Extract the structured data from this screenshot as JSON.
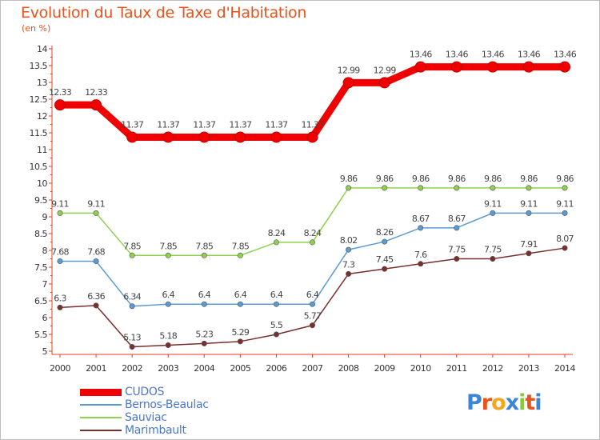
{
  "title": "Evolution du Taux de Taxe d'Habitation",
  "unit": "(en %)",
  "logo": {
    "text": "Proxiti",
    "letters": [
      "P",
      "r",
      "o",
      "x",
      "i",
      "t",
      "i"
    ],
    "colors": [
      "#3a85d8",
      "#e8531c",
      "#f2a81d",
      "#3a85d8",
      "#8cc63e",
      "#e8531c",
      "#3a85d8"
    ]
  },
  "chart_data": {
    "type": "line",
    "title": "Evolution du Taux de Taxe d'Habitation",
    "ylabel": "(en %)",
    "x": [
      "2000",
      "2001",
      "2002",
      "2003",
      "2004",
      "2005",
      "2006",
      "2007",
      "2008",
      "2009",
      "2010",
      "2011",
      "2012",
      "2013",
      "2014"
    ],
    "ylim": [
      5,
      14
    ],
    "yticks": [
      "5",
      "5.5",
      "6",
      "6.5",
      "7",
      "7.5",
      "8",
      "8.5",
      "9",
      "9.5",
      "10",
      "10.5",
      "11",
      "11.5",
      "12",
      "12.5",
      "13",
      "13.5",
      "14"
    ],
    "grid": false,
    "legend_position": "bottom-left",
    "series": [
      {
        "name": "CUDOS",
        "color": "#f00000",
        "values": [
          12.33,
          12.33,
          11.37,
          11.37,
          11.37,
          11.37,
          11.37,
          11.37,
          12.99,
          12.99,
          13.46,
          13.46,
          13.46,
          13.46,
          13.46
        ],
        "labels": [
          "12.33",
          "12.33",
          "11.37",
          "11.37",
          "11.37",
          "11.37",
          "11.37",
          "11.37",
          "12.99",
          "12.99",
          "13.46",
          "13.46",
          "13.46",
          "13.46",
          "13.46"
        ]
      },
      {
        "name": "Bernos-Beaulac",
        "color": "#5b9bd5",
        "values": [
          7.68,
          7.68,
          6.34,
          6.4,
          6.4,
          6.4,
          6.4,
          6.4,
          8.02,
          8.26,
          8.67,
          8.67,
          9.11,
          9.11,
          9.11
        ],
        "labels": [
          "7.68",
          "7.68",
          "6.34",
          "6.4",
          "6.4",
          "6.4",
          "6.4",
          "6.4",
          "8.02",
          "8.26",
          "8.67",
          "8.67",
          "9.11",
          "9.11",
          "9.11"
        ]
      },
      {
        "name": "Sauviac",
        "color": "#8fd14f",
        "values": [
          9.11,
          9.11,
          7.85,
          7.85,
          7.85,
          7.85,
          8.24,
          8.24,
          9.86,
          9.86,
          9.86,
          9.86,
          9.86,
          9.86,
          9.86
        ],
        "labels": [
          "9.11",
          "9.11",
          "7.85",
          "7.85",
          "7.85",
          "7.85",
          "8.24",
          "8.24",
          "9.86",
          "9.86",
          "9.86",
          "9.86",
          "9.86",
          "9.86",
          "9.86"
        ]
      },
      {
        "name": "Marimbault",
        "color": "#7a2e2e",
        "values": [
          6.3,
          6.36,
          5.13,
          5.18,
          5.23,
          5.29,
          5.5,
          5.77,
          7.3,
          7.45,
          7.6,
          7.75,
          7.75,
          7.91,
          8.07
        ],
        "labels": [
          "6.3",
          "6.36",
          "5.13",
          "5.18",
          "5.23",
          "5.29",
          "5.5",
          "5.77",
          "7.3",
          "7.45",
          "7.6",
          "7.75",
          "7.75",
          "7.91",
          "8.07"
        ]
      }
    ]
  }
}
